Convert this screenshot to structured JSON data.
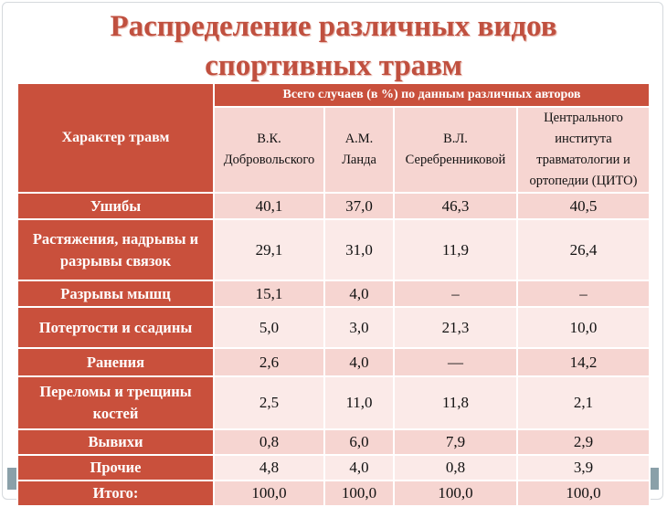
{
  "slide": {
    "title_line1": "Распределение различных видов",
    "title_line2": "спортивных травм"
  },
  "table": {
    "corner_header": "Характер травм",
    "group_header": "Всего случаев (в %) по данным различных авторов",
    "authors": [
      {
        "line1": "В.К.",
        "line2": "Добровольского"
      },
      {
        "line1": "А.М.",
        "line2": "Ланда"
      },
      {
        "line1": "В.Л.",
        "line2": "Серебренниковой"
      },
      {
        "line1": "Центрального",
        "line2": "института",
        "line3": "травматологии и",
        "line4": "ортопедии (ЦИТО)"
      }
    ],
    "rows": [
      {
        "label": "Ушибы",
        "values": [
          "40,1",
          "37,0",
          "46,3",
          "40,5"
        ]
      },
      {
        "label": "Растяжения, надрывы и разрывы связок",
        "values": [
          "29,1",
          "31,0",
          "11,9",
          "26,4"
        ]
      },
      {
        "label": "Разрывы мышц",
        "values": [
          "15,1",
          "4,0",
          "–",
          "–"
        ]
      },
      {
        "label": "Потертости и ссадины",
        "values": [
          "5,0",
          "3,0",
          "21,3",
          "10,0"
        ]
      },
      {
        "label": "Ранения",
        "values": [
          "2,6",
          "4,0",
          "—",
          "14,2"
        ]
      },
      {
        "label": "Переломы и трещины костей",
        "values": [
          "2,5",
          "11,0",
          "11,8",
          "2,1"
        ]
      },
      {
        "label": "Вывихи",
        "values": [
          "0,8",
          "6,0",
          "7,9",
          "2,9"
        ]
      },
      {
        "label": "Прочие",
        "values": [
          "4,8",
          "4,0",
          "0,8",
          "3,9"
        ]
      },
      {
        "label": "Итого:",
        "values": [
          "100,0",
          "100,0",
          "100,0",
          "100,0"
        ]
      }
    ]
  },
  "colors": {
    "title": "#c0503f",
    "header_fill": "#c9503c",
    "row_fill_dark": "#f6d5d1",
    "row_fill_light": "#fbeae8"
  }
}
